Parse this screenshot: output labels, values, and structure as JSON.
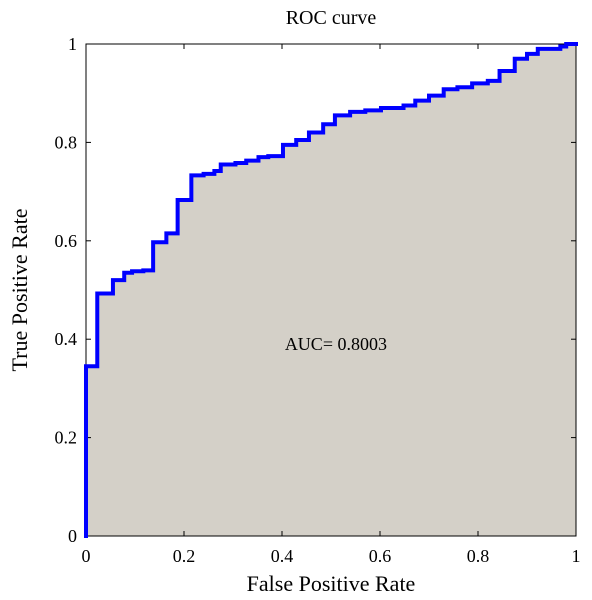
{
  "chart_data": {
    "type": "area",
    "title": "ROC curve",
    "xlabel": "False Positive Rate",
    "ylabel": "True Positive Rate",
    "xlim": [
      0,
      1
    ],
    "ylim": [
      0,
      1
    ],
    "xticks": [
      0,
      0.2,
      0.4,
      0.6,
      0.8,
      1
    ],
    "yticks": [
      0,
      0.2,
      0.4,
      0.6,
      0.8,
      1
    ],
    "xtick_labels": [
      "0",
      "0.2",
      "0.4",
      "0.6",
      "0.8",
      "1"
    ],
    "ytick_labels": [
      "0",
      "0.2",
      "0.4",
      "0.6",
      "0.8",
      "1"
    ],
    "grid": false,
    "annotation": {
      "text": "AUC= 0.8003",
      "x": 0.51,
      "y": 0.39
    },
    "colors": {
      "line": "#0000ff",
      "fill": "#d4d0c8",
      "axes": "#000000",
      "background": "#ffffff"
    },
    "series": [
      {
        "x": [
          0,
          0,
          0.023,
          0.023,
          0.055,
          0.055,
          0.078,
          0.078,
          0.094,
          0.094,
          0.117,
          0.117,
          0.137,
          0.137,
          0.164,
          0.164,
          0.187,
          0.187,
          0.215,
          0.215,
          0.24,
          0.24,
          0.262,
          0.262,
          0.275,
          0.275,
          0.305,
          0.305,
          0.327,
          0.327,
          0.352,
          0.352,
          0.372,
          0.372,
          0.402,
          0.402,
          0.429,
          0.429,
          0.455,
          0.455,
          0.484,
          0.484,
          0.508,
          0.508,
          0.539,
          0.539,
          0.57,
          0.57,
          0.602,
          0.602,
          0.648,
          0.648,
          0.672,
          0.672,
          0.7,
          0.7,
          0.73,
          0.73,
          0.758,
          0.758,
          0.788,
          0.788,
          0.82,
          0.82,
          0.844,
          0.844,
          0.875,
          0.875,
          0.9,
          0.9,
          0.922,
          0.922,
          0.945,
          0.945,
          0.968,
          0.968,
          0.98,
          0.98,
          1
        ],
        "y": [
          0,
          0.345,
          0.345,
          0.493,
          0.493,
          0.52,
          0.52,
          0.535,
          0.535,
          0.538,
          0.538,
          0.54,
          0.54,
          0.597,
          0.597,
          0.615,
          0.615,
          0.683,
          0.683,
          0.733,
          0.733,
          0.736,
          0.736,
          0.742,
          0.742,
          0.755,
          0.755,
          0.758,
          0.758,
          0.763,
          0.763,
          0.77,
          0.77,
          0.772,
          0.772,
          0.795,
          0.795,
          0.805,
          0.805,
          0.82,
          0.82,
          0.837,
          0.837,
          0.855,
          0.855,
          0.862,
          0.862,
          0.865,
          0.865,
          0.87,
          0.87,
          0.875,
          0.875,
          0.885,
          0.885,
          0.895,
          0.895,
          0.908,
          0.908,
          0.912,
          0.912,
          0.92,
          0.92,
          0.925,
          0.925,
          0.945,
          0.945,
          0.97,
          0.97,
          0.98,
          0.98,
          0.99,
          0.99,
          0.99,
          0.99,
          0.995,
          0.995,
          1,
          1
        ]
      }
    ]
  }
}
